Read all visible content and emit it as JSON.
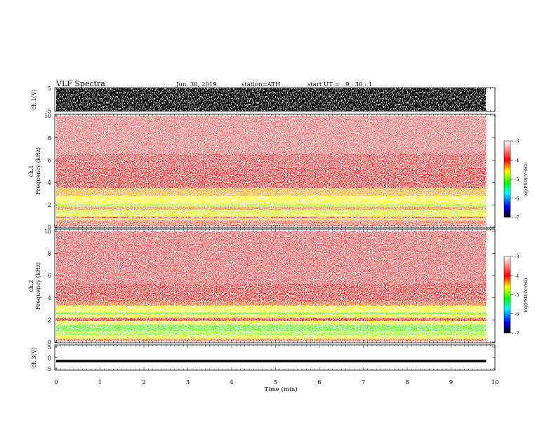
{
  "header": {
    "title": "VLF Spectra",
    "date": "Jun. 30, 2019",
    "station": "station=ATH",
    "start_label": "start  UT  =",
    "start_time": "9 : 30 : 1"
  },
  "colors": {
    "colormap": [
      "#000000",
      "#0000ff",
      "#00ffff",
      "#00ff00",
      "#ffff00",
      "#ff0000",
      "#ffffff"
    ],
    "trace": "#000000"
  },
  "chart_data": [
    {
      "type": "line",
      "panel": "ch1-waveform",
      "ylabel": "ch.1(V)",
      "ylim": [
        -5,
        5
      ],
      "ytick_labels": [
        "5",
        "-5"
      ],
      "x": [
        0,
        9.8
      ],
      "envelope_max": [
        5,
        5
      ],
      "envelope_min": [
        -5,
        -5
      ]
    },
    {
      "type": "heatmap",
      "panel": "ch1-spectrogram",
      "ylabel": "ch.1\nFrequency (kHz)",
      "ylim": [
        0,
        10
      ],
      "ytick_labels": [
        "0",
        "2",
        "4",
        "6",
        "8",
        "10"
      ],
      "x_range_min": [
        0,
        9.8
      ],
      "band_kHz": [
        [
          0,
          0.1
        ],
        [
          0.1,
          0.2
        ],
        [
          0.2,
          0.35
        ],
        [
          0.35,
          0.5
        ],
        [
          0.5,
          0.65
        ],
        [
          0.65,
          0.8
        ],
        [
          0.8,
          0.95
        ],
        [
          0.95,
          1.15
        ],
        [
          1.15,
          1.55
        ],
        [
          1.55,
          1.85
        ],
        [
          1.85,
          2.1
        ],
        [
          2.1,
          2.4
        ],
        [
          2.4,
          2.8
        ],
        [
          2.8,
          3.5
        ],
        [
          3.5,
          5.3
        ],
        [
          5.3,
          6.6
        ],
        [
          6.6,
          10
        ]
      ],
      "band_logpsd": [
        -3.2,
        -4.0,
        -3.6,
        -4.2,
        -3.5,
        -4.5,
        -3.8,
        -4.6,
        -4.7,
        -4.3,
        -4.8,
        -4.6,
        -4.6,
        -4.4,
        -3.9,
        -3.8,
        -3.6
      ],
      "colorbar": {
        "label": "log(PSD)(V²/Hz)",
        "range": [
          -7,
          -3
        ],
        "tick_labels": [
          "-3",
          "-4",
          "-5",
          "-6",
          "-7"
        ]
      }
    },
    {
      "type": "heatmap",
      "panel": "ch2-spectrogram",
      "ylabel": "ch.2\nFrequency (kHz)",
      "ylim": [
        0,
        10
      ],
      "ytick_labels": [
        "0",
        "2",
        "4",
        "6",
        "8",
        "10"
      ],
      "x_range_min": [
        0,
        9.8
      ],
      "band_kHz": [
        [
          0,
          0.1
        ],
        [
          0.1,
          0.3
        ],
        [
          0.3,
          0.6
        ],
        [
          0.6,
          0.8
        ],
        [
          0.8,
          1.0
        ],
        [
          1.0,
          1.6
        ],
        [
          1.6,
          1.9
        ],
        [
          1.9,
          2.2
        ],
        [
          2.2,
          2.5
        ],
        [
          2.5,
          2.7
        ],
        [
          2.7,
          3.3
        ],
        [
          3.3,
          3.7
        ],
        [
          3.7,
          5.3
        ],
        [
          5.3,
          10
        ]
      ],
      "band_logpsd": [
        -3.2,
        -4.2,
        -4.6,
        -4.9,
        -4.8,
        -5.0,
        -4.6,
        -4.0,
        -4.6,
        -5.0,
        -4.6,
        -4.2,
        -3.9,
        -3.7
      ],
      "colorbar": {
        "label": "log(PSD)(V²/Hz)",
        "range": [
          -7,
          -3
        ],
        "tick_labels": [
          "-3",
          "-4",
          "-5",
          "-6",
          "-7"
        ]
      }
    },
    {
      "type": "line",
      "panel": "ch3-waveform",
      "ylabel": "ch.3(V)",
      "ylim": [
        -5,
        5
      ],
      "ytick_labels": [
        "5",
        "0",
        "-5"
      ],
      "x": [
        0,
        9.8
      ],
      "y": [
        -1.5,
        -1.5
      ],
      "xlabel": "Time (min)",
      "xlim": [
        0,
        10
      ],
      "xtick_labels": [
        "0",
        "1",
        "2",
        "3",
        "4",
        "5",
        "6",
        "7",
        "8",
        "9",
        "10"
      ]
    }
  ]
}
